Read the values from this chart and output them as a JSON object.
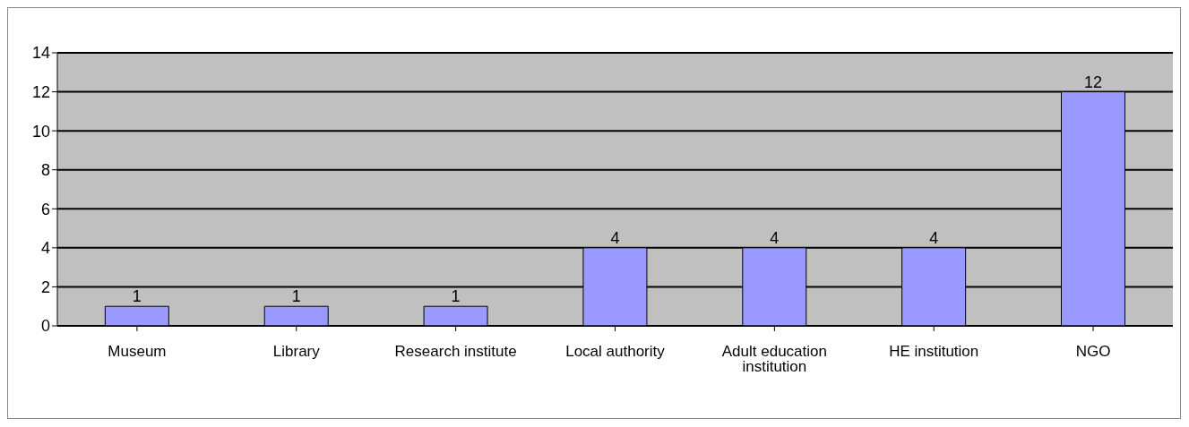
{
  "chart_data": {
    "type": "bar",
    "categories": [
      "Museum",
      "Library",
      "Research institute",
      "Local authority",
      "Adult education institution",
      "HE institution",
      "NGO"
    ],
    "values": [
      1,
      1,
      1,
      4,
      4,
      4,
      12
    ],
    "color": "#9999ff",
    "ylim": [
      0,
      14
    ],
    "yticks": [
      0,
      2,
      4,
      6,
      8,
      10,
      12,
      14
    ],
    "grid": "y",
    "data_labels": true
  }
}
